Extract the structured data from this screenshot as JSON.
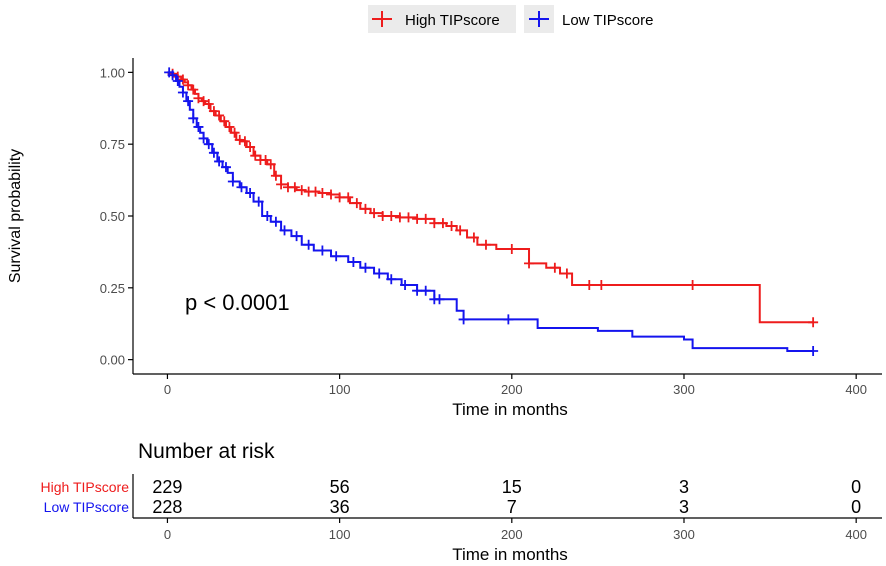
{
  "chart_data": {
    "type": "line",
    "subtype": "kaplan-meier",
    "xlabel": "Time in months",
    "ylabel": "Survival probability",
    "xlim": [
      -20,
      415
    ],
    "ylim": [
      -0.05,
      1.05
    ],
    "x_ticks": [
      0,
      100,
      200,
      300,
      400
    ],
    "y_ticks": [
      0.0,
      0.25,
      0.5,
      0.75,
      1.0
    ],
    "y_tick_labels": [
      "0.00",
      "0.25",
      "0.50",
      "0.75",
      "1.00"
    ],
    "grid": false,
    "legend_position": "top",
    "annotation": "p < 0.0001",
    "colors": {
      "high": "#ee1c1c",
      "low": "#1414ee"
    },
    "series": [
      {
        "name": "High TIPscore",
        "color": "#ee1c1c",
        "x": [
          0,
          2,
          4,
          6,
          8,
          10,
          12,
          14,
          16,
          18,
          20,
          22,
          25,
          28,
          31,
          34,
          37,
          40,
          43,
          46,
          50,
          54,
          58,
          62,
          66,
          70,
          75,
          80,
          88,
          95,
          100,
          106,
          112,
          118,
          125,
          135,
          145,
          155,
          162,
          168,
          174,
          180,
          191,
          205,
          210,
          220,
          228,
          235,
          260,
          300,
          344,
          375
        ],
        "y": [
          1.0,
          0.995,
          0.99,
          0.985,
          0.975,
          0.965,
          0.955,
          0.94,
          0.925,
          0.91,
          0.9,
          0.89,
          0.865,
          0.85,
          0.83,
          0.81,
          0.79,
          0.765,
          0.76,
          0.74,
          0.71,
          0.695,
          0.68,
          0.64,
          0.61,
          0.6,
          0.59,
          0.585,
          0.58,
          0.575,
          0.565,
          0.545,
          0.525,
          0.51,
          0.5,
          0.495,
          0.49,
          0.475,
          0.465,
          0.45,
          0.425,
          0.4,
          0.385,
          0.385,
          0.335,
          0.32,
          0.3,
          0.26,
          0.26,
          0.26,
          0.13,
          0.13
        ],
        "censored_x": [
          3,
          6,
          9,
          12,
          15,
          18,
          21,
          24,
          27,
          30,
          33,
          36,
          39,
          42,
          45,
          48,
          51,
          54,
          57,
          60,
          63,
          66,
          70,
          74,
          78,
          82,
          86,
          90,
          95,
          100,
          105,
          110,
          115,
          120,
          125,
          130,
          135,
          140,
          145,
          150,
          155,
          160,
          165,
          170,
          178,
          185,
          200,
          210,
          225,
          232,
          245,
          252,
          305,
          375
        ]
      },
      {
        "name": "Low TIPscore",
        "color": "#1414ee",
        "x": [
          0,
          3,
          5,
          7,
          9,
          11,
          13,
          15,
          17,
          19,
          21,
          23,
          26,
          29,
          32,
          35,
          38,
          42,
          46,
          50,
          55,
          60,
          66,
          72,
          78,
          85,
          95,
          105,
          112,
          120,
          128,
          136,
          145,
          155,
          168,
          172,
          198,
          215,
          250,
          270,
          300,
          305,
          360,
          375
        ],
        "y": [
          1.0,
          0.99,
          0.97,
          0.95,
          0.93,
          0.9,
          0.87,
          0.84,
          0.81,
          0.79,
          0.77,
          0.75,
          0.72,
          0.69,
          0.67,
          0.65,
          0.62,
          0.6,
          0.58,
          0.55,
          0.5,
          0.48,
          0.45,
          0.43,
          0.4,
          0.38,
          0.36,
          0.34,
          0.32,
          0.3,
          0.28,
          0.26,
          0.24,
          0.21,
          0.17,
          0.14,
          0.14,
          0.11,
          0.1,
          0.08,
          0.07,
          0.04,
          0.03,
          0.03
        ],
        "censored_x": [
          1,
          3,
          6,
          9,
          12,
          15,
          18,
          21,
          24,
          27,
          30,
          34,
          38,
          43,
          48,
          53,
          58,
          63,
          68,
          75,
          82,
          90,
          98,
          108,
          115,
          123,
          130,
          138,
          145,
          150,
          155,
          158,
          172,
          198,
          375
        ]
      }
    ],
    "risk_table": {
      "title": "Number at risk",
      "xlabel": "Time in months",
      "times": [
        0,
        100,
        200,
        300,
        400
      ],
      "rows": [
        {
          "name": "High TIPscore",
          "color": "#ee1c1c",
          "values": [
            "229",
            "56",
            "15",
            "3",
            "0"
          ]
        },
        {
          "name": "Low TIPscore",
          "color": "#1414ee",
          "values": [
            "228",
            "36",
            "7",
            "3",
            "0"
          ]
        }
      ]
    }
  }
}
